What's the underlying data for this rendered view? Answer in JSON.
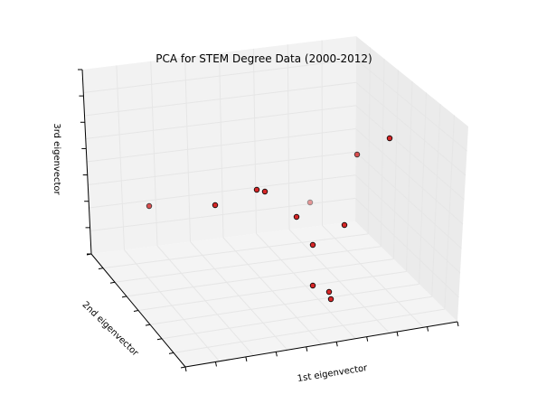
{
  "chart_data": {
    "type": "scatter",
    "projection": "3d",
    "title": "PCA for STEM Degree Data (2000-2012)",
    "xlabel": "1st eigenvector",
    "ylabel": "2nd eigenvector",
    "zlabel": "3rd eigenvector",
    "grid": true,
    "tick_labels_shown": false,
    "marker_color": "#d62728",
    "marker_edge_color": "#000000",
    "pane_color": "#f2f2f2",
    "points_screen_est": [
      {
        "u": 431,
        "v": 153,
        "depth": 1.0
      },
      {
        "u": 395,
        "v": 171,
        "depth": 0.8
      },
      {
        "u": 165,
        "v": 228,
        "depth": 0.8
      },
      {
        "u": 238,
        "v": 227,
        "depth": 1.0
      },
      {
        "u": 284,
        "v": 210,
        "depth": 1.0
      },
      {
        "u": 293,
        "v": 212,
        "depth": 1.0
      },
      {
        "u": 343,
        "v": 224,
        "depth": 0.45
      },
      {
        "u": 328,
        "v": 240,
        "depth": 1.0
      },
      {
        "u": 381,
        "v": 249,
        "depth": 1.0
      },
      {
        "u": 346,
        "v": 271,
        "depth": 1.0
      },
      {
        "u": 346,
        "v": 316,
        "depth": 1.0
      },
      {
        "u": 364,
        "v": 323,
        "depth": 1.0
      },
      {
        "u": 366,
        "v": 331,
        "depth": 1.0
      }
    ]
  }
}
